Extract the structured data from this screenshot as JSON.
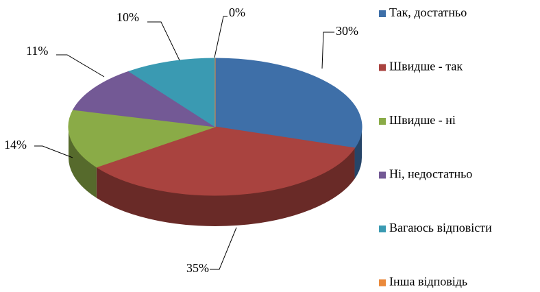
{
  "chart_data": {
    "type": "pie",
    "categories": [
      "Так, достатньо",
      "Швидше - так",
      "Швидше - ні",
      "Ні, недостатньо",
      "Вагаюсь відповісти",
      "Інша відповідь"
    ],
    "values": [
      30,
      35,
      14,
      11,
      10,
      0
    ],
    "value_labels": [
      "30%",
      "35%",
      "14%",
      "11%",
      "10%",
      "0%"
    ],
    "colors": [
      "#3e6fa8",
      "#a9433f",
      "#8aab47",
      "#735995",
      "#3a9ab2",
      "#ea8a3c"
    ],
    "legend": "right"
  }
}
